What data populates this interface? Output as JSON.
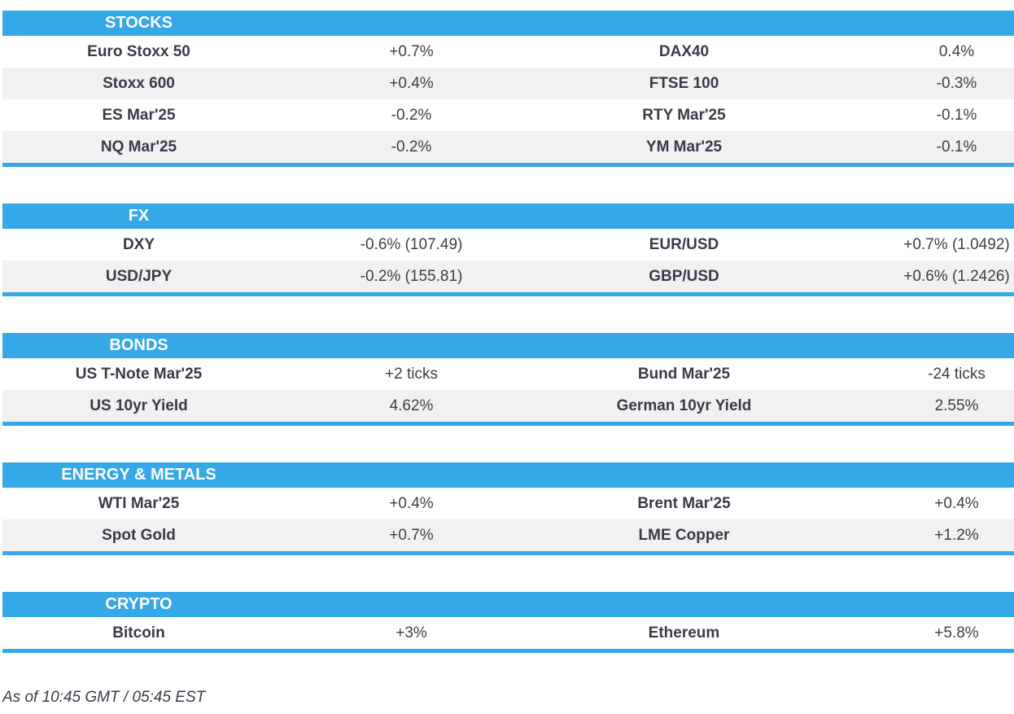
{
  "theme": {
    "accent": "#35a8e8",
    "row_alt_bg": "#f1f1f2",
    "label_color": "#3a3a49",
    "value_color": "#3f3f41"
  },
  "sections": [
    {
      "title": "STOCKS",
      "rows": [
        {
          "label1": "Euro Stoxx 50",
          "value1": "+0.7%",
          "label2": "DAX40",
          "value2": "0.4%"
        },
        {
          "label1": "Stoxx 600",
          "value1": "+0.4%",
          "label2": "FTSE 100",
          "value2": "-0.3%"
        },
        {
          "label1": "ES Mar'25",
          "value1": "-0.2%",
          "label2": "RTY Mar'25",
          "value2": "-0.1%"
        },
        {
          "label1": "NQ Mar'25",
          "value1": "-0.2%",
          "label2": "YM Mar'25",
          "value2": "-0.1%"
        }
      ]
    },
    {
      "title": "FX",
      "rows": [
        {
          "label1": "DXY",
          "value1": "-0.6% (107.49)",
          "label2": "EUR/USD",
          "value2": "+0.7% (1.0492)"
        },
        {
          "label1": "USD/JPY",
          "value1": "-0.2% (155.81)",
          "label2": "GBP/USD",
          "value2": "+0.6% (1.2426)"
        }
      ]
    },
    {
      "title": "BONDS",
      "rows": [
        {
          "label1": "US T-Note Mar'25",
          "value1": "+2 ticks",
          "label2": "Bund Mar'25",
          "value2": "-24 ticks"
        },
        {
          "label1": "US 10yr Yield",
          "value1": "4.62%",
          "label2": "German 10yr Yield",
          "value2": "2.55%"
        }
      ]
    },
    {
      "title": "ENERGY & METALS",
      "rows": [
        {
          "label1": "WTI Mar'25",
          "value1": "+0.4%",
          "label2": "Brent Mar'25",
          "value2": "+0.4%"
        },
        {
          "label1": "Spot Gold",
          "value1": "+0.7%",
          "label2": "LME Copper",
          "value2": "+1.2%"
        }
      ]
    },
    {
      "title": "CRYPTO",
      "rows": [
        {
          "label1": "Bitcoin",
          "value1": "+3%",
          "label2": "Ethereum",
          "value2": "+5.8%"
        }
      ]
    }
  ],
  "footer": {
    "timestamp": "As of 10:45 GMT / 05:45 EST"
  }
}
